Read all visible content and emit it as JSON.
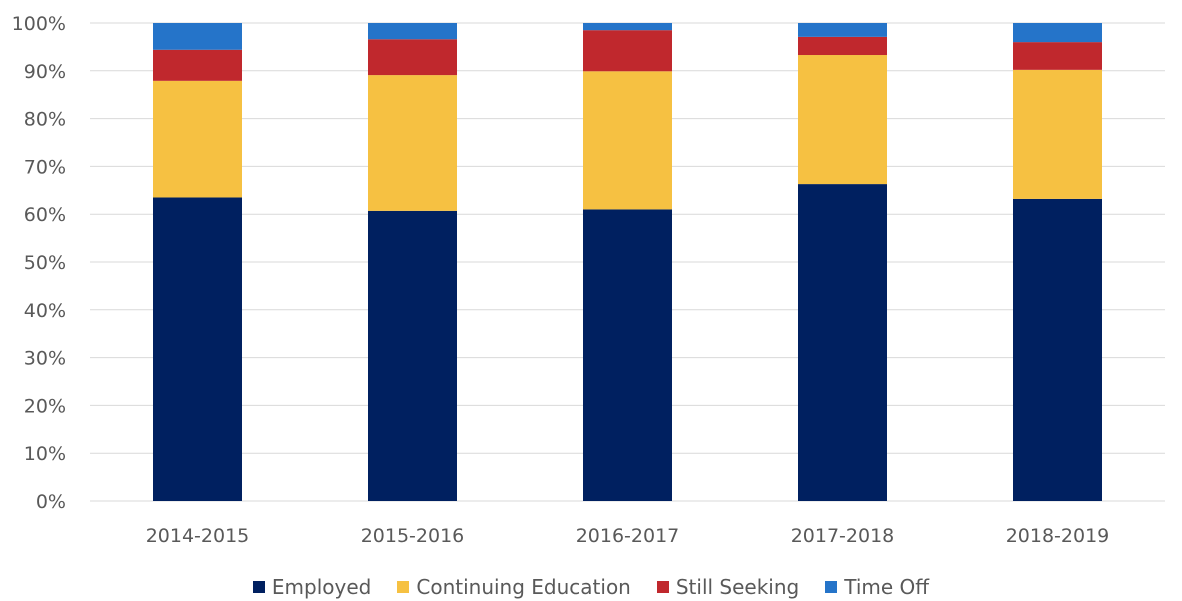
{
  "chart_data": {
    "type": "bar",
    "stacked": true,
    "title": "",
    "xlabel": "",
    "ylabel": "",
    "ylim": [
      0,
      100
    ],
    "y_ticks": [
      0,
      10,
      20,
      30,
      40,
      50,
      60,
      70,
      80,
      90,
      100
    ],
    "y_tick_suffix": "%",
    "grid": true,
    "legend_position": "bottom",
    "categories": [
      "2014-2015",
      "2015-2016",
      "2016-2017",
      "2017-2018",
      "2018-2019"
    ],
    "series": [
      {
        "name": "Employed",
        "color": "#002060",
        "values": [
          63.5,
          60.7,
          61.0,
          66.3,
          63.2
        ]
      },
      {
        "name": "Continuing Education",
        "color": "#F6C142",
        "values": [
          24.4,
          28.4,
          28.9,
          27.0,
          27.0
        ]
      },
      {
        "name": "Still Seeking",
        "color": "#C0282D",
        "values": [
          6.5,
          7.5,
          8.6,
          3.8,
          5.8
        ]
      },
      {
        "name": "Time Off",
        "color": "#2574C9",
        "values": [
          5.6,
          3.4,
          1.5,
          2.9,
          4.0
        ]
      }
    ]
  }
}
